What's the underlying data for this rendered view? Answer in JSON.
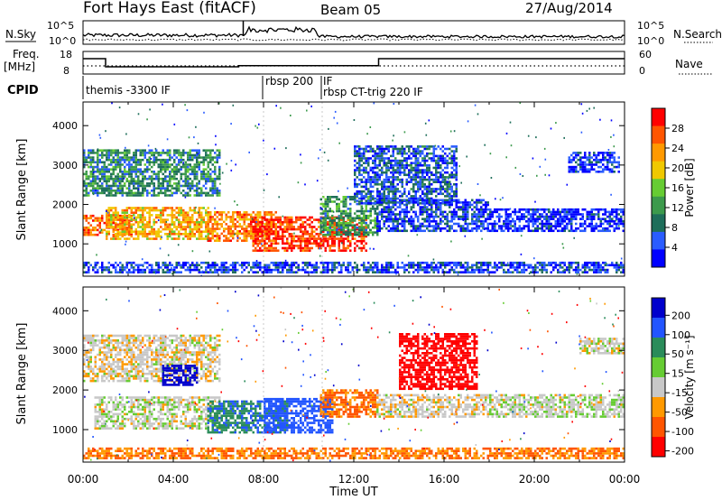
{
  "header": {
    "title": "Fort Hays East (fitACF)",
    "beam": "Beam 05",
    "date": "27/Aug/2014"
  },
  "strips": {
    "nsky_label": "N.Sky",
    "nsky_ticks": [
      "10^5",
      "10^0"
    ],
    "nsearch_label": "N.Search",
    "nsearch_ticks": [
      "10^5",
      "10^0"
    ],
    "freq_label": "Freq.",
    "freq_unit": "[MHz]",
    "freq_ticks": [
      "18",
      "8"
    ],
    "nave_label": "Nave",
    "nave_ticks": [
      "60",
      "0"
    ],
    "cpid_label": "CPID",
    "cpid_segments": [
      {
        "label": "themis -3300 IF",
        "start_h": 0
      },
      {
        "label": "rbsp 200",
        "start_h": 8.0
      },
      {
        "label": "IF",
        "start_h": 10.6
      },
      {
        "label": "rbsp CT-trig 220 IF",
        "start_h": 10.6
      }
    ],
    "freq_series_h": [
      [
        0,
        15.5
      ],
      [
        1,
        15.5
      ],
      [
        1,
        11
      ],
      [
        6.9,
        11
      ],
      [
        6.9,
        11.6
      ],
      [
        13.1,
        11.6
      ],
      [
        13.1,
        15.5
      ],
      [
        24,
        15.5
      ]
    ]
  },
  "chart_data": [
    {
      "type": "heatmap",
      "name": "power",
      "ylabel": "Slant Range [km]",
      "yticks": [
        1000,
        2000,
        3000,
        4000
      ],
      "ylim": [
        180,
        4600
      ],
      "xlim_hours": [
        0,
        24
      ],
      "colorbar_label": "Power [dB]",
      "colorbar_ticks": [
        "28",
        "24",
        "20",
        "16",
        "12",
        "8",
        "4"
      ],
      "colorbar_colors": [
        "#0000ff",
        "#2a5cff",
        "#1e6e5a",
        "#3c9a4c",
        "#66cc33",
        "#f0c800",
        "#ff9900",
        "#ff5500",
        "#ff0000"
      ],
      "regions": [
        {
          "t0": 0.0,
          "t1": 2.2,
          "r0": 1200,
          "r1": 1700,
          "level": 0.85
        },
        {
          "t0": 1.0,
          "t1": 5.5,
          "r0": 1100,
          "r1": 1900,
          "level": 0.7
        },
        {
          "t0": 0.0,
          "t1": 6.0,
          "r0": 2200,
          "r1": 3400,
          "level": 0.3
        },
        {
          "t0": 5.5,
          "t1": 8.5,
          "r0": 1050,
          "r1": 1800,
          "level": 0.8
        },
        {
          "t0": 7.5,
          "t1": 12.5,
          "r0": 800,
          "r1": 1700,
          "level": 0.95
        },
        {
          "t0": 10.5,
          "t1": 13.0,
          "r0": 1200,
          "r1": 2200,
          "level": 0.35
        },
        {
          "t0": 12.0,
          "t1": 16.5,
          "r0": 2000,
          "r1": 3500,
          "level": 0.15
        },
        {
          "t0": 13.0,
          "t1": 18.0,
          "r0": 1300,
          "r1": 2100,
          "level": 0.1
        },
        {
          "t0": 18.0,
          "t1": 24.0,
          "r0": 1300,
          "r1": 1900,
          "level": 0.05
        },
        {
          "t0": 21.5,
          "t1": 23.8,
          "r0": 2800,
          "r1": 3300,
          "level": 0.08
        },
        {
          "t0": 0.0,
          "t1": 24.0,
          "r0": 250,
          "r1": 500,
          "level": 0.1
        }
      ]
    },
    {
      "type": "heatmap",
      "name": "velocity",
      "ylabel": "Slant Range [km]",
      "yticks": [
        1000,
        2000,
        3000,
        4000
      ],
      "ylim": [
        180,
        4600
      ],
      "xlim_hours": [
        0,
        24
      ],
      "xticks": [
        "00:00",
        "04:00",
        "08:00",
        "12:00",
        "16:00",
        "20:00",
        "00:00"
      ],
      "xlabel": "Time UT",
      "colorbar_label": "Velocity [m s⁻¹]",
      "colorbar_ticks": [
        "200",
        "100",
        "50",
        "15",
        "-15",
        "-50",
        "-100",
        "-200"
      ],
      "colorbar_colors": [
        "#0000cc",
        "#2255ff",
        "#2a8c5a",
        "#66cc33",
        "#c8c8c8",
        "#ff9900",
        "#ff5500",
        "#ff0000"
      ],
      "regions": [
        {
          "t0": 0.0,
          "t1": 6.0,
          "r0": 2200,
          "r1": 3400,
          "value": -5
        },
        {
          "t0": 0.5,
          "t1": 6.0,
          "r0": 1000,
          "r1": 1800,
          "value": 5
        },
        {
          "t0": 3.5,
          "t1": 5.0,
          "r0": 2100,
          "r1": 2600,
          "value": 180
        },
        {
          "t0": 5.5,
          "t1": 9.0,
          "r0": 900,
          "r1": 1700,
          "value": 70
        },
        {
          "t0": 8.0,
          "t1": 11.0,
          "r0": 900,
          "r1": 1800,
          "value": 110
        },
        {
          "t0": 10.5,
          "t1": 13.0,
          "r0": 1300,
          "r1": 2000,
          "value": -60
        },
        {
          "t0": 14.0,
          "t1": 17.5,
          "r0": 2000,
          "r1": 3400,
          "value": -180
        },
        {
          "t0": 13.0,
          "t1": 18.0,
          "r0": 1300,
          "r1": 1900,
          "value": -5
        },
        {
          "t0": 18.0,
          "t1": 24.0,
          "r0": 1300,
          "r1": 1900,
          "value": 5
        },
        {
          "t0": 22.0,
          "t1": 24.0,
          "r0": 2900,
          "r1": 3300,
          "value": 0
        },
        {
          "t0": 0.0,
          "t1": 24.0,
          "r0": 250,
          "r1": 550,
          "value": -50
        }
      ]
    }
  ]
}
